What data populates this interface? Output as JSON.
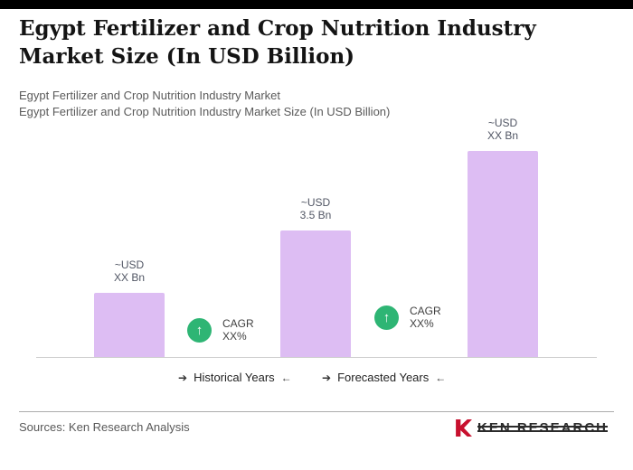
{
  "header": {
    "title": "Egypt Fertilizer and Crop Nutrition Industry Market Size (In USD Billion)",
    "subtitle_line1": "Egypt Fertilizer and Crop Nutrition Industry Market",
    "subtitle_line2": "Egypt Fertilizer and Crop Nutrition Industry Market Size (In USD Billion)"
  },
  "chart_data": {
    "type": "bar",
    "title": "Egypt Fertilizer and Crop Nutrition Industry Market Size (In USD Billion)",
    "ylim": [
      0,
      6
    ],
    "bars": [
      {
        "label_line1": "~USD",
        "label_line2": "XX Bn",
        "value_est": 1.8
      },
      {
        "label_line1": "~USD",
        "label_line2": "3.5 Bn",
        "value_est": 3.5
      },
      {
        "label_line1": "~USD",
        "label_line2": "XX Bn",
        "value_est": 5.7
      }
    ],
    "bar_color": "#ddbdf3",
    "badge_color": "#2eb574",
    "badge_arrow": "↑",
    "cagr_badges": [
      {
        "line1": "CAGR",
        "line2": "XX%"
      },
      {
        "line1": "CAGR",
        "line2": "XX%"
      }
    ],
    "period_labels": [
      {
        "arrow_before": "➔",
        "text": "Historical Years",
        "arrow_after": "←"
      },
      {
        "arrow_before": "➔",
        "text": "Forecasted Years",
        "arrow_after": "←"
      }
    ]
  },
  "footer": {
    "source_text": "Sources: Ken Research Analysis",
    "logo_text": "KEN RESEARCH"
  }
}
